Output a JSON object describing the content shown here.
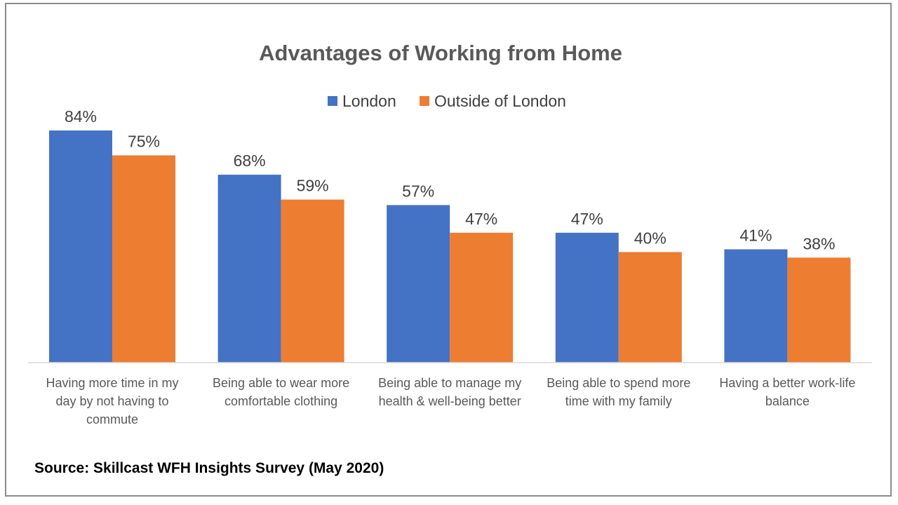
{
  "source": "Source: Skillcast WFH Insights Survey (May 2020)",
  "chart_data": {
    "type": "bar",
    "title": "Advantages of Working from Home",
    "xlabel": "",
    "ylabel": "",
    "ylim": [
      0,
      100
    ],
    "grid": false,
    "legend": "top",
    "value_format": "percent",
    "categories": [
      [
        "Having more time in my",
        "day by not having to",
        "commute"
      ],
      [
        "Being able to wear more",
        "comfortable clothing"
      ],
      [
        "Being able to manage my",
        "health & well-being better"
      ],
      [
        "Being able to spend more",
        "time with my family"
      ],
      [
        "Having a better work-life",
        "balance"
      ]
    ],
    "series": [
      {
        "name": "London",
        "color": "#4472C4",
        "values": [
          84,
          68,
          57,
          47,
          41
        ]
      },
      {
        "name": "Outside of London",
        "color": "#ED7D31",
        "values": [
          75,
          59,
          47,
          40,
          38
        ]
      }
    ]
  }
}
